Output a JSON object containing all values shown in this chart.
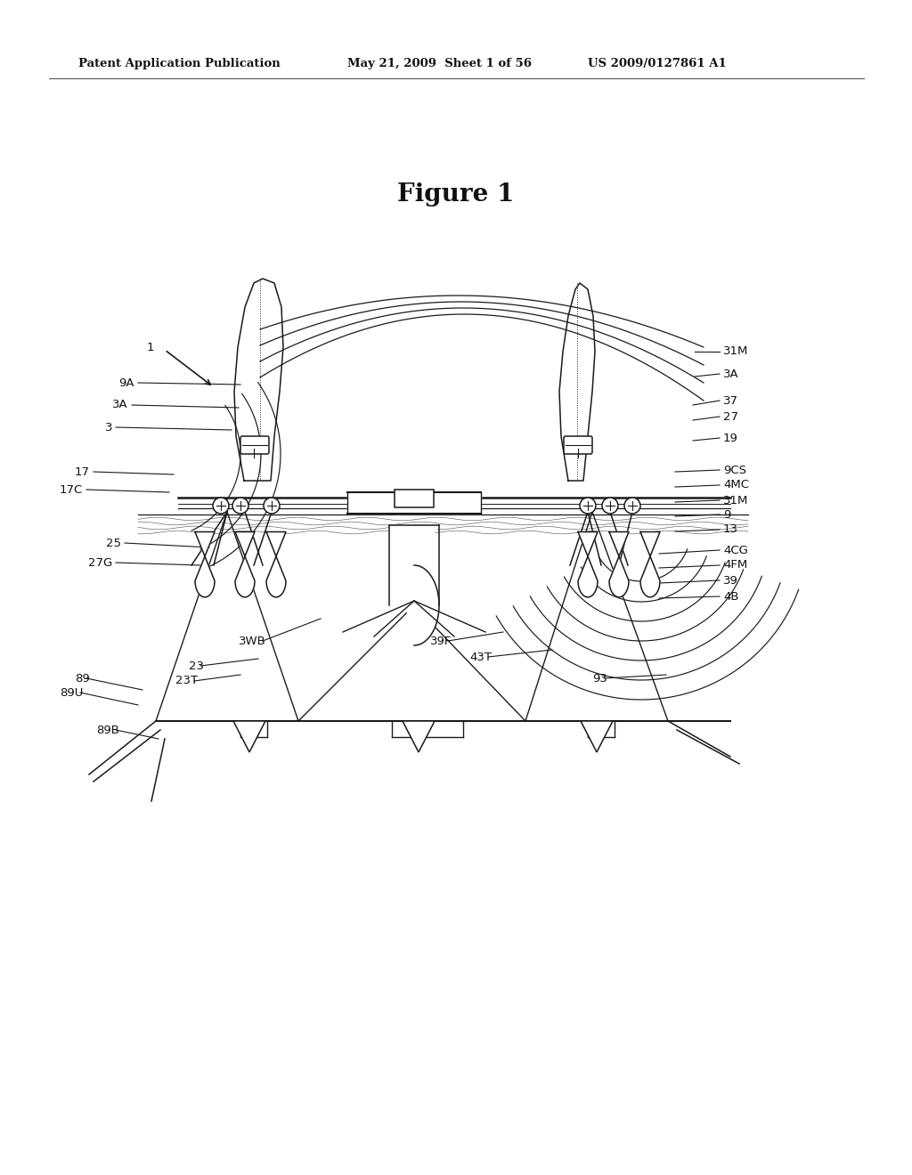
{
  "bg": "#ffffff",
  "dc": "#1a1a1a",
  "header_left": "Patent Application Publication",
  "header_mid": "May 21, 2009  Sheet 1 of 56",
  "header_right": "US 2009/0127861 A1",
  "title": "Figure 1"
}
